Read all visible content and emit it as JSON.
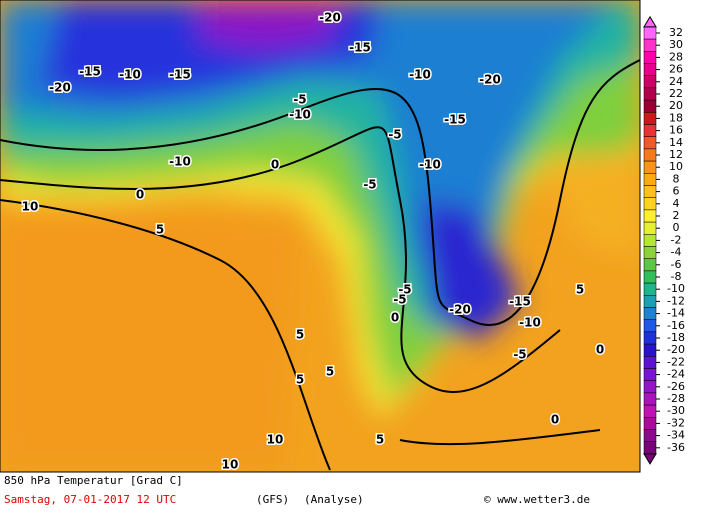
{
  "colorbar": {
    "ticks": [
      32,
      30,
      28,
      26,
      24,
      22,
      20,
      18,
      16,
      14,
      12,
      10,
      8,
      6,
      4,
      2,
      0,
      -2,
      -4,
      -6,
      -8,
      -10,
      -12,
      -14,
      -16,
      -18,
      -20,
      -22,
      -24,
      -26,
      -28,
      -30,
      -32,
      -34,
      -36
    ],
    "colors": [
      "#ff66ff",
      "#ff33cc",
      "#ff00aa",
      "#e6008c",
      "#cc0066",
      "#b3004d",
      "#990033",
      "#cc1a1a",
      "#e63333",
      "#f05a28",
      "#f57a1f",
      "#fa9419",
      "#fcaa14",
      "#ffc01a",
      "#ffd21f",
      "#fff02e",
      "#e6f032",
      "#b4e632",
      "#8cd23c",
      "#5ac846",
      "#32be5a",
      "#1eb48c",
      "#1ea0b4",
      "#1e82d2",
      "#1e5ae6",
      "#1e32dc",
      "#2814c8",
      "#5a14d2",
      "#7814d2",
      "#9614c8",
      "#aa14be",
      "#be14b4",
      "#aa0aa0",
      "#8c0a8c",
      "#780078"
    ]
  },
  "map": {
    "labels": [
      "-20",
      "-15",
      "-10",
      "-20",
      "-15",
      "-10",
      "-5",
      "0",
      "5",
      "10",
      "-10",
      "-15",
      "-5",
      "-10",
      "-5",
      "0",
      "5",
      "-10",
      "-15",
      "-20",
      "-20",
      "-15",
      "-10",
      "-5",
      "0",
      "5",
      "5",
      "10",
      "10",
      "0",
      "-5",
      "5",
      "0",
      "-5",
      "5"
    ]
  },
  "footer": {
    "title": "850 hPa Temperatur [Grad C]",
    "date": "Samstag, 07-01-2017  12 UTC",
    "model": "(GFS)",
    "run": "(Analyse)",
    "credit": "© www.wetter3.de"
  }
}
